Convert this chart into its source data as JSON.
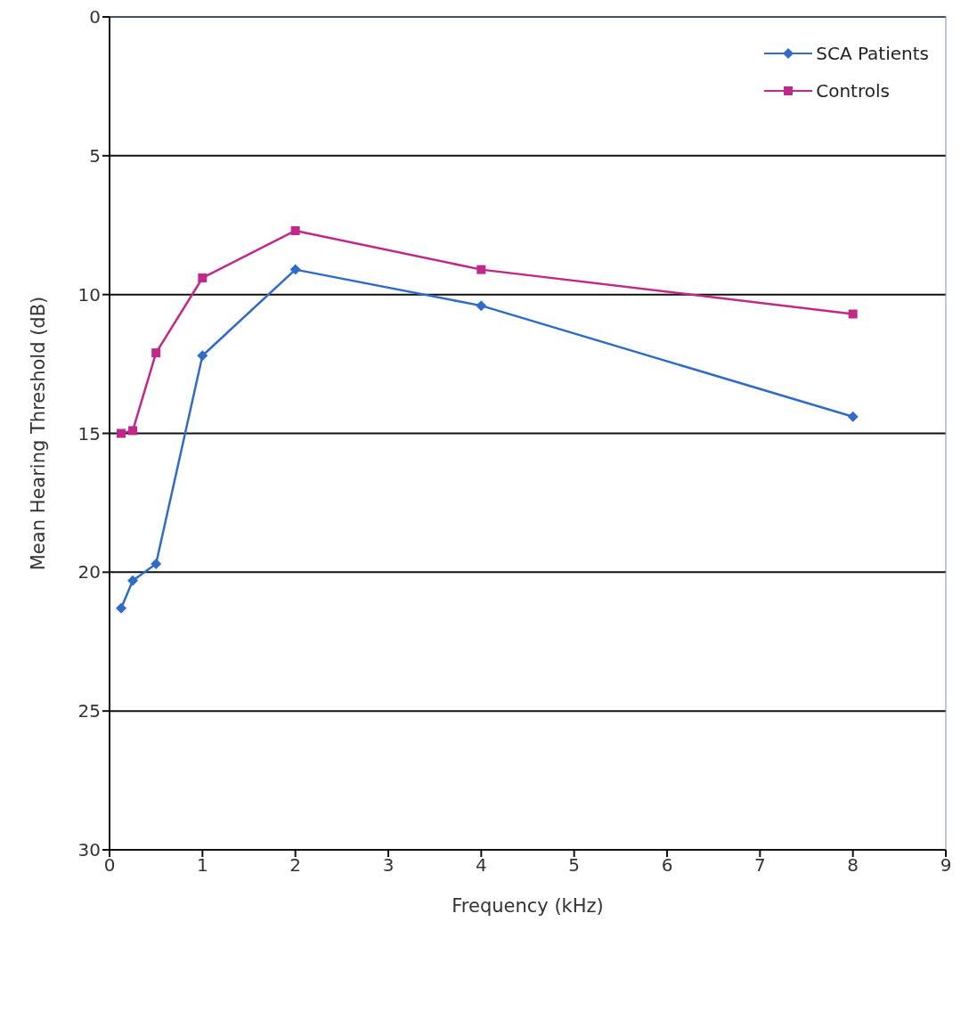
{
  "chart_data": {
    "type": "line",
    "xlabel": "Frequency (kHz)",
    "ylabel": "Mean Hearing Threshold (dB)",
    "xlim": [
      0,
      9
    ],
    "xticks": [
      0,
      1,
      2,
      3,
      4,
      5,
      6,
      7,
      8,
      9
    ],
    "ylim": [
      30,
      0
    ],
    "yticks": [
      0,
      5,
      10,
      15,
      20,
      25,
      30
    ],
    "grid": "y",
    "legend": "top right",
    "line_style": "solid",
    "x": [
      0.125,
      0.25,
      0.5,
      1,
      2,
      4,
      8
    ],
    "series": [
      {
        "name": "SCA Patients",
        "color": "#2f6bc8",
        "marker": "diamond",
        "values": [
          21.3,
          20.3,
          19.7,
          12.2,
          9.1,
          10.4,
          14.4
        ]
      },
      {
        "name": "Controls",
        "color": "#c0288a",
        "marker": "square",
        "values": [
          15.0,
          14.9,
          12.1,
          9.4,
          7.7,
          9.1,
          10.7
        ]
      }
    ]
  }
}
